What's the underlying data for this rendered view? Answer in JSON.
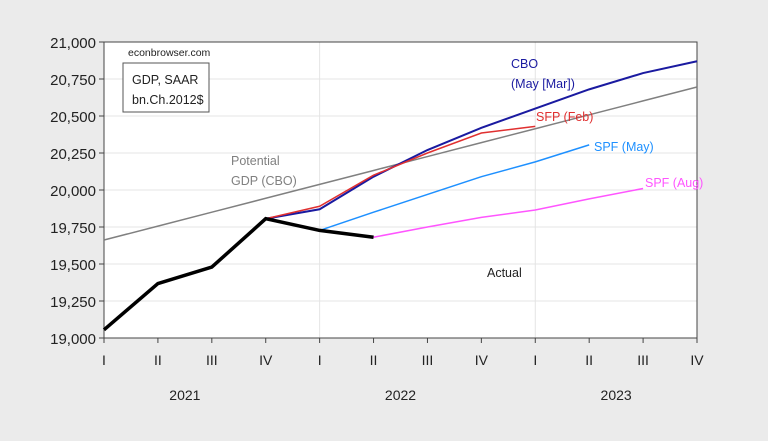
{
  "chart_data": {
    "type": "line",
    "source_note": "econbrowser.com",
    "legend_box": [
      "GDP, SAAR",
      "bn.Ch.2012$"
    ],
    "x_quarter_labels": [
      "I",
      "II",
      "III",
      "IV",
      "I",
      "II",
      "III",
      "IV",
      "I",
      "II",
      "III",
      "IV"
    ],
    "x_year_labels": [
      {
        "year": "2021",
        "quarter_index": 1.5
      },
      {
        "year": "2022",
        "quarter_index": 5.5
      },
      {
        "year": "2023",
        "quarter_index": 9.5
      }
    ],
    "ylim": [
      19000,
      21000
    ],
    "yticks": [
      "19,000",
      "19,250",
      "19,500",
      "19,750",
      "20,000",
      "20,250",
      "20,500",
      "20,750",
      "21,000"
    ],
    "ytick_values": [
      19000,
      19250,
      19500,
      19750,
      20000,
      20250,
      20500,
      20750,
      21000
    ],
    "grid": true,
    "series": [
      {
        "name": "Potential GDP (CBO)",
        "label_lines": [
          "Potential",
          "GDP (CBO)"
        ],
        "color": "#808080",
        "start": 0,
        "values": [
          19662,
          19756,
          19850,
          19944,
          20038,
          20132,
          20226,
          20320,
          20414,
          20508,
          20602,
          20696
        ],
        "width": 1.5
      },
      {
        "name": "CBO (May [Mar])",
        "label_lines": [
          "CBO",
          "(May [Mar])"
        ],
        "color": "#1a1aa0",
        "start": 3,
        "values": [
          19806,
          19870,
          20090,
          20270,
          20420,
          20550,
          20680,
          20790,
          20870
        ],
        "width": 2
      },
      {
        "name": "SFP (Feb)",
        "label_lines": [
          "SFP (Feb)"
        ],
        "color": "#e03030",
        "start": 3,
        "values": [
          19806,
          19890,
          20100,
          20250,
          20385,
          20430
        ],
        "width": 1.5
      },
      {
        "name": "SPF (May)",
        "label_lines": [
          "SPF (May)"
        ],
        "color": "#1e90ff",
        "start": 4,
        "values": [
          19727,
          19850,
          19970,
          20090,
          20190,
          20305
        ],
        "width": 1.5
      },
      {
        "name": "SPF (Aug)",
        "label_lines": [
          "SPF (Aug)"
        ],
        "color": "#ff55ff",
        "start": 5,
        "values": [
          19681,
          19750,
          19815,
          19865,
          19940,
          20010
        ],
        "width": 1.5
      },
      {
        "name": "Actual",
        "label_lines": [
          "Actual"
        ],
        "color": "#000000",
        "start": 0,
        "values": [
          19055,
          19368,
          19479,
          19806,
          19727,
          19681
        ],
        "width": 3.5
      }
    ]
  }
}
